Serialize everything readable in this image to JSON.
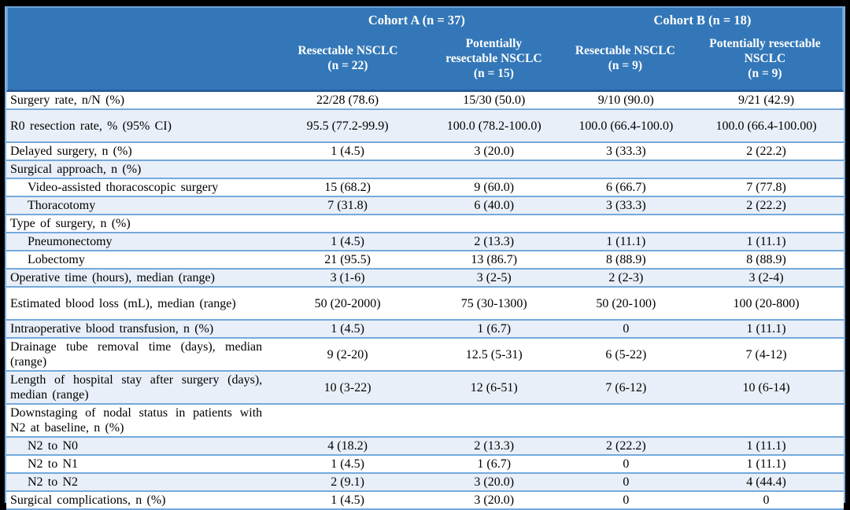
{
  "table": {
    "header": {
      "cohort_a": "Cohort A (n = 37)",
      "cohort_b": "Cohort B (n = 18)",
      "columns": [
        {
          "name": "cohort-a-resectable",
          "lines": [
            "Resectable NSCLC",
            "(n = 22)"
          ]
        },
        {
          "name": "cohort-a-potentially-resectable",
          "lines": [
            "Potentially",
            "resectable NSCLC",
            "(n = 15)"
          ]
        },
        {
          "name": "cohort-b-resectable",
          "lines": [
            "Resectable NSCLC",
            "(n = 9)"
          ]
        },
        {
          "name": "cohort-b-potentially-resectable",
          "lines": [
            "Potentially resectable",
            "NSCLC",
            "(n = 9)"
          ]
        }
      ]
    },
    "rows": [
      {
        "label": "Surgery rate, n/N (%)",
        "indent": false,
        "shade": false,
        "tall": false,
        "values": [
          "22/28 (78.6)",
          "15/30 (50.0)",
          "9/10 (90.0)",
          "9/21 (42.9)"
        ]
      },
      {
        "label": "R0 resection rate, % (95% CI)",
        "indent": false,
        "shade": true,
        "tall": true,
        "values": [
          "95.5 (77.2-99.9)",
          "100.0 (78.2-100.0)",
          "100.0 (66.4-100.0)",
          "100.0 (66.4-100.00)"
        ]
      },
      {
        "label": "Delayed surgery, n (%)",
        "indent": false,
        "shade": false,
        "tall": false,
        "values": [
          "1 (4.5)",
          "3 (20.0)",
          "3 (33.3)",
          "2 (22.2)"
        ]
      },
      {
        "label": "Surgical approach, n (%)",
        "indent": false,
        "shade": true,
        "tall": false,
        "values": null
      },
      {
        "label": "Video-assisted thoracoscopic surgery",
        "indent": true,
        "shade": false,
        "tall": false,
        "values": [
          "15 (68.2)",
          "9 (60.0)",
          "6 (66.7)",
          "7 (77.8)"
        ]
      },
      {
        "label": "Thoracotomy",
        "indent": true,
        "shade": true,
        "tall": false,
        "values": [
          "7 (31.8)",
          "6 (40.0)",
          "3 (33.3)",
          "2 (22.2)"
        ]
      },
      {
        "label": "Type of surgery, n (%)",
        "indent": false,
        "shade": false,
        "tall": false,
        "values": null
      },
      {
        "label": "Pneumonectomy",
        "indent": true,
        "shade": true,
        "tall": false,
        "values": [
          "1 (4.5)",
          "2 (13.3)",
          "1 (11.1)",
          "1 (11.1)"
        ]
      },
      {
        "label": "Lobectomy",
        "indent": true,
        "shade": false,
        "tall": false,
        "values": [
          "21 (95.5)",
          "13 (86.7)",
          "8 (88.9)",
          "8 (88.9)"
        ]
      },
      {
        "label": "Operative time (hours), median (range)",
        "indent": false,
        "shade": true,
        "tall": false,
        "values": [
          "3 (1-6)",
          "3 (2-5)",
          "2 (2-3)",
          "3 (2-4)"
        ]
      },
      {
        "label": "Estimated blood loss (mL), median (range)",
        "indent": false,
        "shade": false,
        "tall": true,
        "values": [
          "50 (20-2000)",
          "75 (30-1300)",
          "50 (20-100)",
          "100 (20-800)"
        ]
      },
      {
        "label": "Intraoperative blood transfusion, n (%)",
        "indent": false,
        "shade": true,
        "tall": false,
        "values": [
          "1 (4.5)",
          "1 (6.7)",
          "0",
          "1 (11.1)"
        ]
      },
      {
        "label": "Drainage tube removal time (days), median (range)",
        "indent": false,
        "shade": false,
        "tall": true,
        "values": [
          "9 (2-20)",
          "12.5 (5-31)",
          "6 (5-22)",
          "7 (4-12)"
        ]
      },
      {
        "label": "Length of hospital stay after surgery (days), median (range)",
        "indent": false,
        "shade": true,
        "tall": true,
        "values": [
          "10 (3-22)",
          "12 (6-51)",
          "7 (6-12)",
          "10 (6-14)"
        ]
      },
      {
        "label": "Downstaging of nodal status in patients with N2 at baseline, n (%)",
        "indent": false,
        "shade": false,
        "tall": true,
        "values": null
      },
      {
        "label": "N2 to N0",
        "indent": true,
        "shade": true,
        "tall": false,
        "values": [
          "4 (18.2)",
          "2 (13.3)",
          "2 (22.2)",
          "1 (11.1)"
        ]
      },
      {
        "label": "N2 to N1",
        "indent": true,
        "shade": false,
        "tall": false,
        "values": [
          "1 (4.5)",
          "1 (6.7)",
          "0",
          "1 (11.1)"
        ]
      },
      {
        "label": "N2 to N2",
        "indent": true,
        "shade": true,
        "tall": false,
        "values": [
          "2 (9.1)",
          "3 (20.0)",
          "0",
          "4 (44.4)"
        ]
      },
      {
        "label": "Surgical complications, n (%)",
        "indent": false,
        "shade": false,
        "tall": false,
        "values": [
          "1 (4.5)",
          "3 (20.0)",
          "0",
          "0"
        ]
      }
    ]
  },
  "colors": {
    "header_blue": "#3377B8",
    "header_outline": "#6CA3D8",
    "header_divider": "#2A5C99",
    "row_divider": "#74A9DC",
    "shaded_row": "#E9EFF8",
    "frame": "#000000"
  }
}
